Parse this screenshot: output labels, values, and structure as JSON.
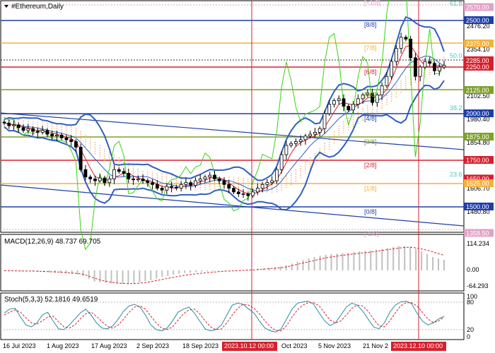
{
  "chart_data": [
    {
      "type": "line",
      "panel": "price",
      "title": "#Ethereum,Daily",
      "y_tick_labels": [
        "2476.20",
        "2354.10",
        "2102.50",
        "1980.40",
        "1854.80",
        "1606.70",
        "1480.80"
      ],
      "level_tags": [
        {
          "value": "2570.00",
          "color": "#e2a2c6"
        },
        {
          "value": "2500.00",
          "color": "#1f3ea8"
        },
        {
          "value": "2375.00",
          "color": "#f3b23e"
        },
        {
          "value": "2285.00",
          "color": "#d6202e"
        },
        {
          "value": "2250.00",
          "color": "#d6202e"
        },
        {
          "value": "2125.00",
          "color": "#7ea12a"
        },
        {
          "value": "2000.00",
          "color": "#1f3ea8"
        },
        {
          "value": "1875.00",
          "color": "#7ea12a"
        },
        {
          "value": "1750.00",
          "color": "#d6202e"
        },
        {
          "value": "1650.00",
          "color": "#d6202e"
        },
        {
          "value": "1625.00",
          "color": "#f3b23e"
        },
        {
          "value": "1500.00",
          "color": "#1f3ea8"
        },
        {
          "value": "1358.50",
          "color": "#e2a2c6"
        }
      ],
      "murrey_labels": [
        "[8/8]",
        "[7/8]",
        "[6/8]",
        "[5/8]",
        "[4/8]",
        "[3/8]",
        "[2/8]",
        "[1/8]",
        "[0/8]",
        "[-1/8]",
        "[+1/8]"
      ],
      "fib_labels": [
        "61.8",
        "50.0",
        "38.2",
        "23.6"
      ],
      "series": [
        {
          "name": "Close",
          "values": [
            1950,
            1935,
            1940,
            1925,
            1910,
            1920,
            1905,
            1900,
            1910,
            1890,
            1880,
            1885,
            1870,
            1860,
            1850,
            1820,
            1700,
            1660,
            1650,
            1640,
            1655,
            1630,
            1650,
            1700,
            1690,
            1680,
            1650,
            1645,
            1650,
            1640,
            1630,
            1620,
            1600,
            1590,
            1610,
            1605,
            1600,
            1620,
            1630,
            1615,
            1640,
            1650,
            1660,
            1670,
            1650,
            1640,
            1620,
            1600,
            1580,
            1570,
            1570,
            1560,
            1580,
            1600,
            1620,
            1630,
            1640,
            1700,
            1780,
            1830,
            1840,
            1850,
            1860,
            1880,
            1890,
            1900,
            1920,
            2000,
            2050,
            2070,
            2080,
            2040,
            2020,
            2050,
            2080,
            2100,
            2110,
            2060,
            2100,
            2150,
            2200,
            2280,
            2350,
            2410,
            2400,
            2300,
            2200,
            2250,
            2280,
            2270,
            2230,
            2250,
            2260
          ]
        }
      ]
    },
    {
      "type": "bar",
      "panel": "macd",
      "title": "MACD(12,26,9) 48.737 69.705",
      "y_tick_labels": [
        "114.234",
        "0.00",
        "-64.293"
      ],
      "series": [
        {
          "name": "Main",
          "values": [
            -2,
            -3,
            -4,
            -3,
            -2,
            -4,
            -6,
            -8,
            -9,
            -11,
            -12,
            -14,
            -16,
            -20,
            -26,
            -40,
            -52,
            -55,
            -58,
            -60,
            -62,
            -63,
            -64,
            -60,
            -55,
            -50,
            -45,
            -38,
            -30,
            -25,
            -20,
            -15,
            -12,
            -10,
            -8,
            -6,
            -4,
            -3,
            -2,
            -2,
            -1,
            0,
            2,
            4,
            6,
            8,
            10,
            12,
            14,
            18,
            24,
            32,
            40,
            48,
            55,
            62,
            68,
            72,
            76,
            78,
            80,
            82,
            85,
            88,
            90,
            92,
            96,
            100,
            104,
            108,
            112,
            114,
            110,
            100,
            88,
            75,
            62,
            55,
            49
          ]
        },
        {
          "name": "Signal",
          "values": [
            -1,
            -2,
            -2,
            -3,
            -3,
            -3,
            -4,
            -5,
            -6,
            -7,
            -8,
            -10,
            -12,
            -14,
            -18,
            -26,
            -36,
            -44,
            -50,
            -55,
            -58,
            -60,
            -61,
            -61,
            -59,
            -56,
            -52,
            -47,
            -42,
            -37,
            -32,
            -27,
            -23,
            -19,
            -16,
            -13,
            -10,
            -8,
            -6,
            -4,
            -3,
            -2,
            -1,
            1,
            2,
            4,
            6,
            8,
            10,
            12,
            16,
            22,
            28,
            34,
            40,
            46,
            52,
            58,
            62,
            66,
            70,
            73,
            76,
            79,
            82,
            85,
            88,
            92,
            96,
            100,
            103,
            106,
            107,
            104,
            99,
            93,
            86,
            78,
            70
          ]
        }
      ]
    },
    {
      "type": "line",
      "panel": "stochastic",
      "title": "Stoch(5,3,3) 52.1816 49.6519",
      "y_tick_labels": [
        "100",
        "80",
        "20",
        "0"
      ],
      "series": [
        {
          "name": "%K",
          "values": [
            60,
            70,
            72,
            50,
            30,
            25,
            35,
            55,
            62,
            40,
            20,
            18,
            30,
            45,
            60,
            70,
            55,
            35,
            22,
            20,
            28,
            45,
            65,
            78,
            82,
            75,
            55,
            30,
            18,
            15,
            22,
            40,
            62,
            70,
            75,
            60,
            40,
            20,
            15,
            18,
            30,
            55,
            80,
            85,
            82,
            70,
            60,
            40,
            22,
            15,
            12,
            20,
            45,
            70,
            85,
            88,
            90,
            82,
            60,
            40,
            28,
            35,
            55,
            75,
            85,
            80,
            65,
            45,
            25,
            20,
            35,
            62,
            80,
            88,
            90,
            84,
            60,
            40,
            30,
            35,
            45,
            52
          ]
        },
        {
          "name": "%D",
          "values": [
            55,
            62,
            68,
            62,
            48,
            35,
            32,
            40,
            50,
            52,
            38,
            25,
            22,
            30,
            45,
            58,
            62,
            52,
            38,
            26,
            22,
            30,
            45,
            62,
            75,
            78,
            70,
            52,
            35,
            22,
            18,
            25,
            42,
            58,
            68,
            70,
            58,
            40,
            25,
            18,
            20,
            35,
            55,
            72,
            82,
            80,
            72,
            58,
            40,
            25,
            16,
            15,
            28,
            50,
            68,
            80,
            86,
            86,
            78,
            60,
            42,
            35,
            40,
            55,
            72,
            80,
            78,
            65,
            45,
            28,
            25,
            40,
            60,
            78,
            86,
            86,
            78,
            62,
            45,
            36,
            40,
            50
          ]
        }
      ]
    }
  ],
  "x_axis": {
    "labels": [
      "16 Jul 2023",
      "1 Aug 2023",
      "17 Aug 2023",
      "2 Sep 2023",
      "18 Sep 2023",
      "Oct 2023",
      "5 Nov 2023",
      "21 Nov 2"
    ],
    "highlight_labels": [
      "2023.10.12 00:00",
      "2023.12.10 00:00"
    ]
  },
  "colors": {
    "bollinger": "#2f5fbf",
    "oscillator_green": "#39d315",
    "ma_red": "#d6202e",
    "candles": "#000000",
    "marker_line": "#d6202e",
    "cloud": "#f0a96a",
    "macd_hist": "#c0c0c0",
    "stoch_main": "#2a8aa0"
  }
}
